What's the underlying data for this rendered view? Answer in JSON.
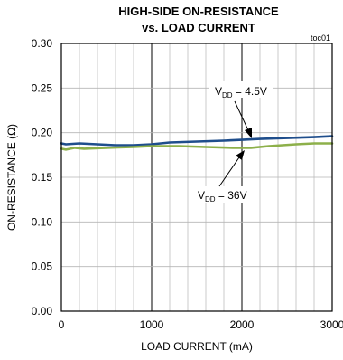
{
  "chart_data": {
    "type": "line",
    "title": "HIGH-SIDE ON-RESISTANCE",
    "subtitle": "vs. LOAD CURRENT",
    "tag": "toc01",
    "xlabel": "LOAD CURRENT (mA)",
    "ylabel": "ON-RESISTANCE (Ω)",
    "xlim": [
      0,
      3000
    ],
    "ylim": [
      0,
      0.3
    ],
    "x_ticks": [
      0,
      1000,
      2000,
      3000
    ],
    "x_tick_labels": [
      "0",
      "1000",
      "2000",
      "3000"
    ],
    "y_ticks": [
      0,
      0.05,
      0.1,
      0.15,
      0.2,
      0.25,
      0.3
    ],
    "y_tick_labels": [
      "0.00",
      "0.05",
      "0.10",
      "0.15",
      "0.20",
      "0.25",
      "0.30"
    ],
    "grid": true,
    "series": [
      {
        "label_main": "V",
        "label_sub": "DD",
        "label_rest": " = 4.5V",
        "color": "#1f4e8c",
        "x": [
          0,
          50,
          200,
          400,
          600,
          800,
          1000,
          1200,
          1500,
          1800,
          2000,
          2200,
          2500,
          2800,
          3000
        ],
        "y": [
          0.188,
          0.187,
          0.188,
          0.187,
          0.186,
          0.186,
          0.187,
          0.189,
          0.19,
          0.191,
          0.192,
          0.193,
          0.194,
          0.195,
          0.196
        ]
      },
      {
        "label_main": "V",
        "label_sub": "DD",
        "label_rest": " = 36V",
        "color": "#8db04a",
        "x": [
          0,
          50,
          150,
          250,
          500,
          800,
          1000,
          1300,
          1600,
          1900,
          2100,
          2300,
          2600,
          2800,
          3000
        ],
        "y": [
          0.182,
          0.181,
          0.183,
          0.182,
          0.183,
          0.184,
          0.185,
          0.185,
          0.184,
          0.183,
          0.183,
          0.185,
          0.187,
          0.188,
          0.188
        ]
      }
    ]
  }
}
